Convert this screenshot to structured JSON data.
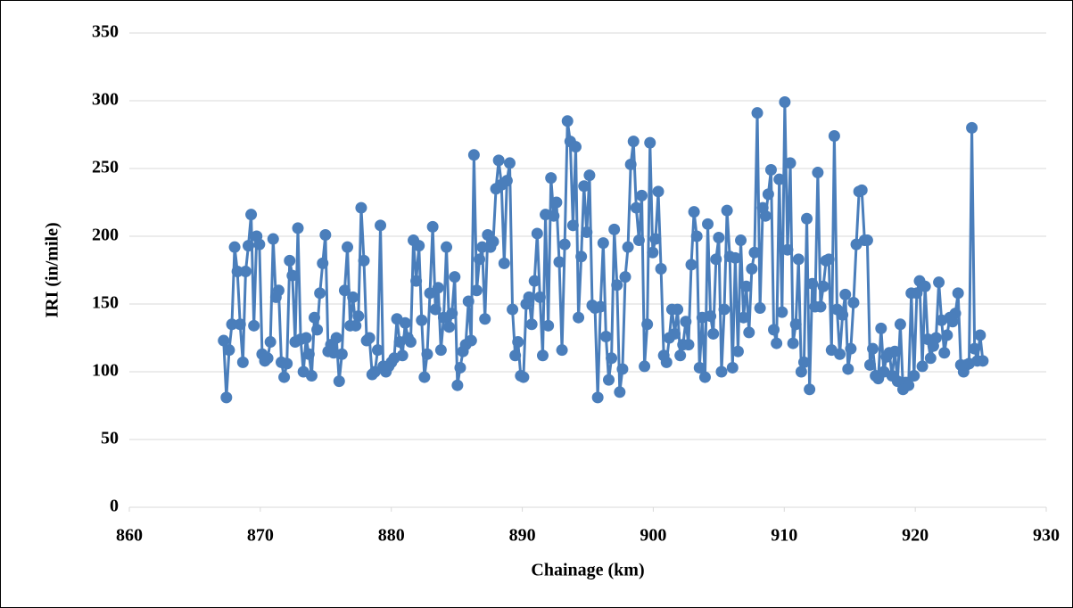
{
  "chart_data": {
    "type": "line",
    "x_label": "Chainage (km)",
    "y_label": "IRI  (in/mile)",
    "xlim": [
      860,
      930
    ],
    "xticks": [
      860,
      870,
      880,
      890,
      900,
      910,
      920,
      930
    ],
    "ylim": [
      0,
      350
    ],
    "yticks": [
      0,
      50,
      100,
      150,
      200,
      250,
      300,
      350
    ],
    "grid": true,
    "x": [
      867.2,
      867.41,
      867.62,
      867.83,
      868.04,
      868.25,
      868.46,
      868.67,
      868.88,
      869.09,
      869.3,
      869.51,
      869.72,
      869.93,
      870.14,
      870.35,
      870.56,
      870.77,
      870.98,
      871.19,
      871.4,
      871.61,
      871.82,
      872.03,
      872.24,
      872.45,
      872.66,
      872.87,
      873.08,
      873.29,
      873.5,
      873.71,
      873.92,
      874.13,
      874.34,
      874.55,
      874.76,
      874.97,
      875.18,
      875.39,
      875.6,
      875.81,
      876.02,
      876.23,
      876.44,
      876.65,
      876.86,
      877.07,
      877.28,
      877.49,
      877.7,
      877.91,
      878.12,
      878.33,
      878.54,
      878.75,
      878.96,
      879.17,
      879.38,
      879.59,
      879.8,
      880.01,
      880.22,
      880.43,
      880.64,
      880.85,
      881.06,
      881.27,
      881.48,
      881.69,
      881.9,
      882.11,
      882.32,
      882.53,
      882.74,
      882.95,
      883.16,
      883.37,
      883.58,
      883.79,
      884.0,
      884.21,
      884.42,
      884.63,
      884.84,
      885.05,
      885.26,
      885.47,
      885.68,
      885.89,
      886.1,
      886.31,
      886.52,
      886.73,
      886.94,
      887.15,
      887.36,
      887.57,
      887.78,
      887.99,
      888.2,
      888.41,
      888.62,
      888.83,
      889.04,
      889.25,
      889.46,
      889.67,
      889.88,
      890.09,
      890.3,
      890.51,
      890.72,
      890.93,
      891.14,
      891.35,
      891.56,
      891.77,
      891.98,
      892.19,
      892.4,
      892.61,
      892.82,
      893.03,
      893.24,
      893.45,
      893.66,
      893.87,
      894.08,
      894.29,
      894.5,
      894.71,
      894.92,
      895.13,
      895.34,
      895.55,
      895.76,
      895.97,
      896.18,
      896.39,
      896.6,
      896.81,
      897.02,
      897.23,
      897.44,
      897.65,
      897.86,
      898.07,
      898.28,
      898.49,
      898.7,
      898.91,
      899.12,
      899.33,
      899.54,
      899.75,
      899.96,
      900.17,
      900.38,
      900.59,
      900.8,
      901.01,
      901.22,
      901.43,
      901.64,
      901.85,
      902.06,
      902.27,
      902.48,
      902.69,
      902.9,
      903.11,
      903.32,
      903.53,
      903.74,
      903.95,
      904.16,
      904.37,
      904.58,
      904.79,
      905.0,
      905.21,
      905.42,
      905.63,
      905.84,
      906.05,
      906.26,
      906.47,
      906.68,
      906.89,
      907.1,
      907.31,
      907.52,
      907.73,
      907.94,
      908.15,
      908.36,
      908.57,
      908.78,
      908.99,
      909.2,
      909.41,
      909.62,
      909.83,
      910.04,
      910.25,
      910.46,
      910.67,
      910.88,
      911.09,
      911.3,
      911.51,
      911.72,
      911.93,
      912.14,
      912.35,
      912.56,
      912.77,
      912.98,
      913.19,
      913.4,
      913.61,
      913.82,
      914.03,
      914.24,
      914.45,
      914.66,
      914.87,
      915.08,
      915.29,
      915.5,
      915.71,
      915.92,
      916.13,
      916.34,
      916.55,
      916.76,
      916.97,
      917.18,
      917.39,
      917.6,
      917.81,
      918.02,
      918.23,
      918.44,
      918.65,
      918.86,
      919.07,
      919.28,
      919.49,
      919.7,
      919.91,
      920.12,
      920.33,
      920.54,
      920.75,
      920.96,
      921.17,
      921.38,
      921.59,
      921.8,
      922.01,
      922.22,
      922.43,
      922.64,
      922.85,
      923.06,
      923.27,
      923.48,
      923.69,
      923.9,
      924.11,
      924.32,
      924.53,
      924.74,
      924.95,
      925.16
    ],
    "series": [
      {
        "color": "#4a7ebb",
        "values": [
          123,
          81,
          116,
          135,
          192,
          174,
          135,
          107,
          174,
          193,
          216,
          134,
          200,
          194,
          113,
          108,
          110,
          122,
          198,
          155,
          160,
          107,
          96,
          106,
          182,
          171,
          122,
          206,
          124,
          100,
          125,
          113,
          97,
          140,
          131,
          158,
          180,
          201,
          115,
          120,
          114,
          125,
          93,
          113,
          160,
          192,
          134,
          155,
          134,
          141,
          221,
          182,
          123,
          125,
          98,
          100,
          116,
          208,
          104,
          100,
          104,
          107,
          110,
          139,
          122,
          112,
          136,
          125,
          122,
          197,
          167,
          193,
          138,
          96,
          113,
          158,
          207,
          146,
          162,
          116,
          140,
          192,
          133,
          143,
          170,
          90,
          103,
          115,
          120,
          152,
          123,
          260,
          160,
          183,
          192,
          139,
          201,
          192,
          196,
          235,
          256,
          238,
          180,
          241,
          254,
          146,
          112,
          122,
          97,
          96,
          150,
          155,
          135,
          167,
          202,
          155,
          112,
          216,
          134,
          243,
          215,
          225,
          181,
          116,
          194,
          285,
          270,
          208,
          266,
          140,
          185,
          237,
          203,
          245,
          149,
          147,
          81,
          148,
          195,
          126,
          94,
          110,
          205,
          164,
          85,
          102,
          170,
          192,
          253,
          270,
          221,
          197,
          230,
          104,
          135,
          269,
          188,
          198,
          233,
          176,
          112,
          107,
          125,
          146,
          128,
          146,
          112,
          120,
          137,
          120,
          179,
          218,
          200,
          103,
          140,
          96,
          209,
          141,
          128,
          183,
          199,
          100,
          146,
          219,
          185,
          103,
          184,
          115,
          197,
          140,
          163,
          129,
          176,
          188,
          291,
          147,
          221,
          215,
          231,
          249,
          131,
          121,
          242,
          144,
          299,
          190,
          254,
          121,
          135,
          183,
          100,
          107,
          213,
          87,
          165,
          148,
          247,
          148,
          163,
          182,
          183,
          116,
          274,
          146,
          113,
          142,
          157,
          102,
          117,
          151,
          194,
          233,
          234,
          197,
          197,
          105,
          117,
          97,
          95,
          132,
          100,
          111,
          114,
          97,
          115,
          93,
          135,
          87,
          92,
          90,
          158,
          97,
          158,
          167,
          104,
          163,
          124,
          110,
          119,
          125,
          166,
          138,
          114,
          127,
          140,
          137,
          143,
          158,
          105,
          100,
          105,
          106,
          280,
          117,
          108,
          127,
          108
        ]
      }
    ]
  }
}
